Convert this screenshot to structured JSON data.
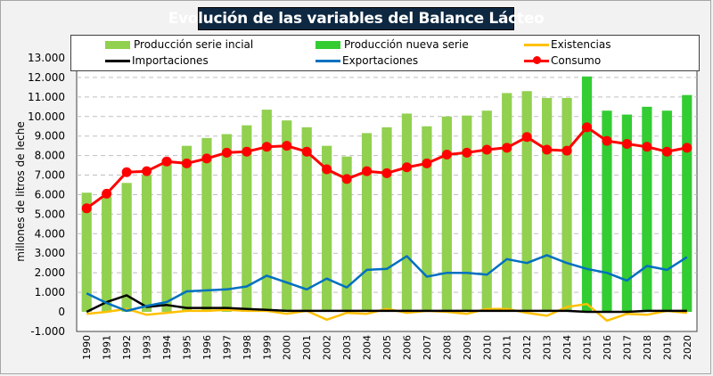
{
  "chart_data": {
    "type": "bar",
    "title": "Evolución de las variables del Balance Lácteo",
    "ylabel": "millones de litros de leche",
    "xlabel": "",
    "ylim": [
      -1000,
      13000
    ],
    "yticks": [
      -1000,
      0,
      1000,
      2000,
      3000,
      4000,
      5000,
      6000,
      7000,
      8000,
      9000,
      10000,
      11000,
      12000,
      13000
    ],
    "ytick_labels": [
      "-1.000",
      "0",
      "1.000",
      "2.000",
      "3.000",
      "4.000",
      "5.000",
      "6.000",
      "7.000",
      "8.000",
      "9.000",
      "10.000",
      "11.000",
      "12.000",
      "13.000"
    ],
    "grid": true,
    "legend_position": "top",
    "categories": [
      "1990",
      "1991",
      "1992",
      "1993",
      "1994",
      "1995",
      "1996",
      "1997",
      "1998",
      "1999",
      "2000",
      "2001",
      "2002",
      "2003",
      "2004",
      "2005",
      "2006",
      "2007",
      "2008",
      "2009",
      "2010",
      "2011",
      "2012",
      "2013",
      "2014",
      "2015",
      "2016",
      "2017",
      "2018",
      "2019",
      "2020"
    ],
    "series": [
      {
        "name": "Producción serie incial",
        "kind": "bar",
        "color": "#92d050",
        "values": [
          6100,
          5900,
          6600,
          7000,
          7800,
          8500,
          8900,
          9100,
          9550,
          10350,
          9800,
          9450,
          8500,
          7950,
          9150,
          9450,
          10150,
          9500,
          10000,
          10050,
          10300,
          11200,
          11300,
          10950,
          10950,
          null,
          null,
          null,
          null,
          null,
          null
        ]
      },
      {
        "name": "Producción nueva serie",
        "kind": "bar",
        "color": "#33cc33",
        "values": [
          null,
          null,
          null,
          null,
          null,
          null,
          null,
          null,
          null,
          null,
          null,
          null,
          null,
          null,
          null,
          null,
          null,
          null,
          null,
          null,
          null,
          null,
          null,
          null,
          null,
          12050,
          10300,
          10100,
          10500,
          10300,
          11100
        ]
      },
      {
        "name": "Existencias",
        "kind": "line",
        "color": "#ffc000",
        "values": [
          -100,
          0,
          150,
          -150,
          -50,
          50,
          50,
          100,
          50,
          50,
          -100,
          50,
          -400,
          -50,
          -100,
          150,
          -50,
          50,
          0,
          -100,
          150,
          150,
          -50,
          -200,
          250,
          400,
          -450,
          -100,
          -150,
          50,
          -50
        ]
      },
      {
        "name": "Importaciones",
        "kind": "line",
        "color": "#000000",
        "values": [
          0,
          500,
          850,
          250,
          350,
          200,
          200,
          200,
          150,
          100,
          50,
          50,
          50,
          50,
          50,
          50,
          50,
          50,
          50,
          50,
          50,
          50,
          50,
          50,
          50,
          0,
          0,
          0,
          50,
          50,
          50
        ]
      },
      {
        "name": "Exportaciones",
        "kind": "line",
        "color": "#0070c0",
        "values": [
          950,
          450,
          50,
          300,
          500,
          1050,
          1100,
          1150,
          1300,
          1850,
          1500,
          1150,
          1700,
          1250,
          2150,
          2200,
          2850,
          1800,
          2000,
          2000,
          1900,
          2700,
          2500,
          2900,
          2500,
          2200,
          2000,
          1600,
          2350,
          2150,
          2800
        ]
      },
      {
        "name": "Consumo",
        "kind": "line-marker",
        "color": "#ff0000",
        "values": [
          5300,
          6050,
          7150,
          7200,
          7700,
          7600,
          7850,
          8150,
          8200,
          8450,
          8500,
          8200,
          7300,
          6800,
          7200,
          7100,
          7400,
          7600,
          8050,
          8150,
          8300,
          8400,
          8950,
          8300,
          8250,
          9450,
          8750,
          8600,
          8450,
          8200,
          8400
        ]
      }
    ]
  },
  "legend": {
    "items": [
      {
        "label": "Producción serie incial",
        "type": "bar",
        "color": "#92d050"
      },
      {
        "label": "Producción nueva serie",
        "type": "bar",
        "color": "#33cc33"
      },
      {
        "label": "Existencias",
        "type": "line",
        "color": "#ffc000"
      },
      {
        "label": "Importaciones",
        "type": "line",
        "color": "#000000"
      },
      {
        "label": "Exportaciones",
        "type": "line",
        "color": "#0070c0"
      },
      {
        "label": "Consumo",
        "type": "line-marker",
        "color": "#ff0000"
      }
    ]
  }
}
